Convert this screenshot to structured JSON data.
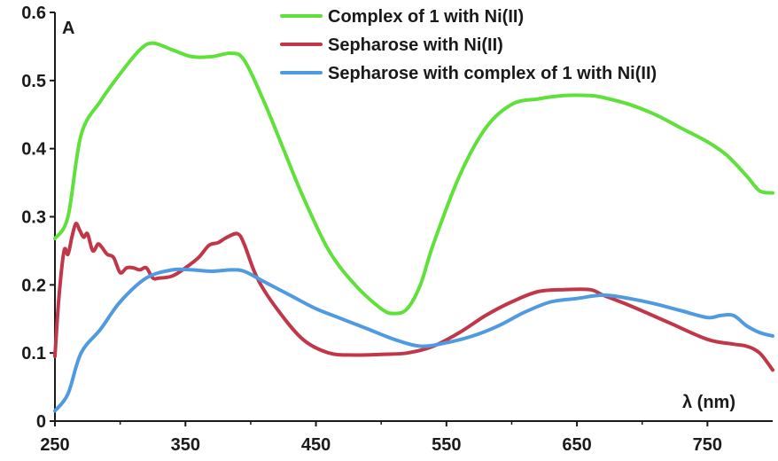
{
  "chart_data": {
    "type": "line",
    "title": "",
    "panel_label": "A",
    "xlabel": "λ (nm)",
    "ylabel": "",
    "xlim": [
      250,
      800
    ],
    "ylim": [
      0,
      0.6
    ],
    "x_ticks": [
      250,
      350,
      450,
      550,
      650,
      750
    ],
    "y_ticks": [
      0,
      0.1,
      0.2,
      0.3,
      0.4,
      0.5,
      0.6
    ],
    "grid": false,
    "legend_position": "top-right",
    "series": [
      {
        "name": "Complex of 1 with Ni(II)",
        "color": "#5fe03a",
        "x": [
          250,
          260,
          270,
          285,
          300,
          315,
          325,
          340,
          355,
          370,
          385,
          395,
          410,
          425,
          440,
          460,
          480,
          500,
          510,
          520,
          530,
          540,
          560,
          580,
          600,
          620,
          640,
          660,
          670,
          690,
          710,
          730,
          750,
          765,
          780,
          790,
          800
        ],
        "y": [
          0.268,
          0.3,
          0.42,
          0.47,
          0.51,
          0.545,
          0.555,
          0.545,
          0.535,
          0.535,
          0.54,
          0.53,
          0.47,
          0.4,
          0.33,
          0.25,
          0.2,
          0.165,
          0.158,
          0.165,
          0.2,
          0.26,
          0.36,
          0.43,
          0.465,
          0.473,
          0.478,
          0.478,
          0.475,
          0.465,
          0.45,
          0.43,
          0.41,
          0.39,
          0.36,
          0.338,
          0.335
        ]
      },
      {
        "name": "Sepharose with Ni(II)",
        "color": "#c0374a",
        "x": [
          250,
          253,
          257,
          260,
          263,
          266,
          269,
          272,
          275,
          279,
          283,
          286,
          290,
          295,
          300,
          305,
          310,
          315,
          320,
          325,
          330,
          340,
          350,
          360,
          368,
          375,
          382,
          390,
          395,
          405,
          420,
          440,
          460,
          480,
          500,
          520,
          540,
          560,
          580,
          600,
          620,
          640,
          660,
          670,
          690,
          720,
          750,
          770,
          780,
          790,
          800
        ],
        "y": [
          0.095,
          0.18,
          0.25,
          0.245,
          0.27,
          0.29,
          0.28,
          0.27,
          0.275,
          0.25,
          0.26,
          0.255,
          0.245,
          0.24,
          0.218,
          0.225,
          0.225,
          0.222,
          0.225,
          0.21,
          0.21,
          0.213,
          0.225,
          0.24,
          0.258,
          0.262,
          0.27,
          0.275,
          0.26,
          0.21,
          0.165,
          0.12,
          0.1,
          0.097,
          0.098,
          0.1,
          0.11,
          0.13,
          0.155,
          0.175,
          0.19,
          0.193,
          0.193,
          0.185,
          0.17,
          0.145,
          0.12,
          0.113,
          0.11,
          0.1,
          0.075
        ]
      },
      {
        "name": "Sepharose with complex of 1 with Ni(II)",
        "color": "#4f9ae0",
        "x": [
          250,
          260,
          270,
          285,
          300,
          320,
          340,
          355,
          370,
          385,
          395,
          410,
          430,
          450,
          470,
          490,
          510,
          530,
          550,
          570,
          590,
          610,
          630,
          650,
          670,
          690,
          710,
          730,
          750,
          760,
          770,
          780,
          790,
          800
        ],
        "y": [
          0.015,
          0.04,
          0.1,
          0.135,
          0.175,
          0.21,
          0.222,
          0.222,
          0.22,
          0.222,
          0.22,
          0.205,
          0.185,
          0.165,
          0.15,
          0.135,
          0.12,
          0.11,
          0.115,
          0.125,
          0.14,
          0.16,
          0.175,
          0.18,
          0.185,
          0.18,
          0.172,
          0.162,
          0.152,
          0.155,
          0.155,
          0.14,
          0.13,
          0.125
        ]
      }
    ]
  }
}
